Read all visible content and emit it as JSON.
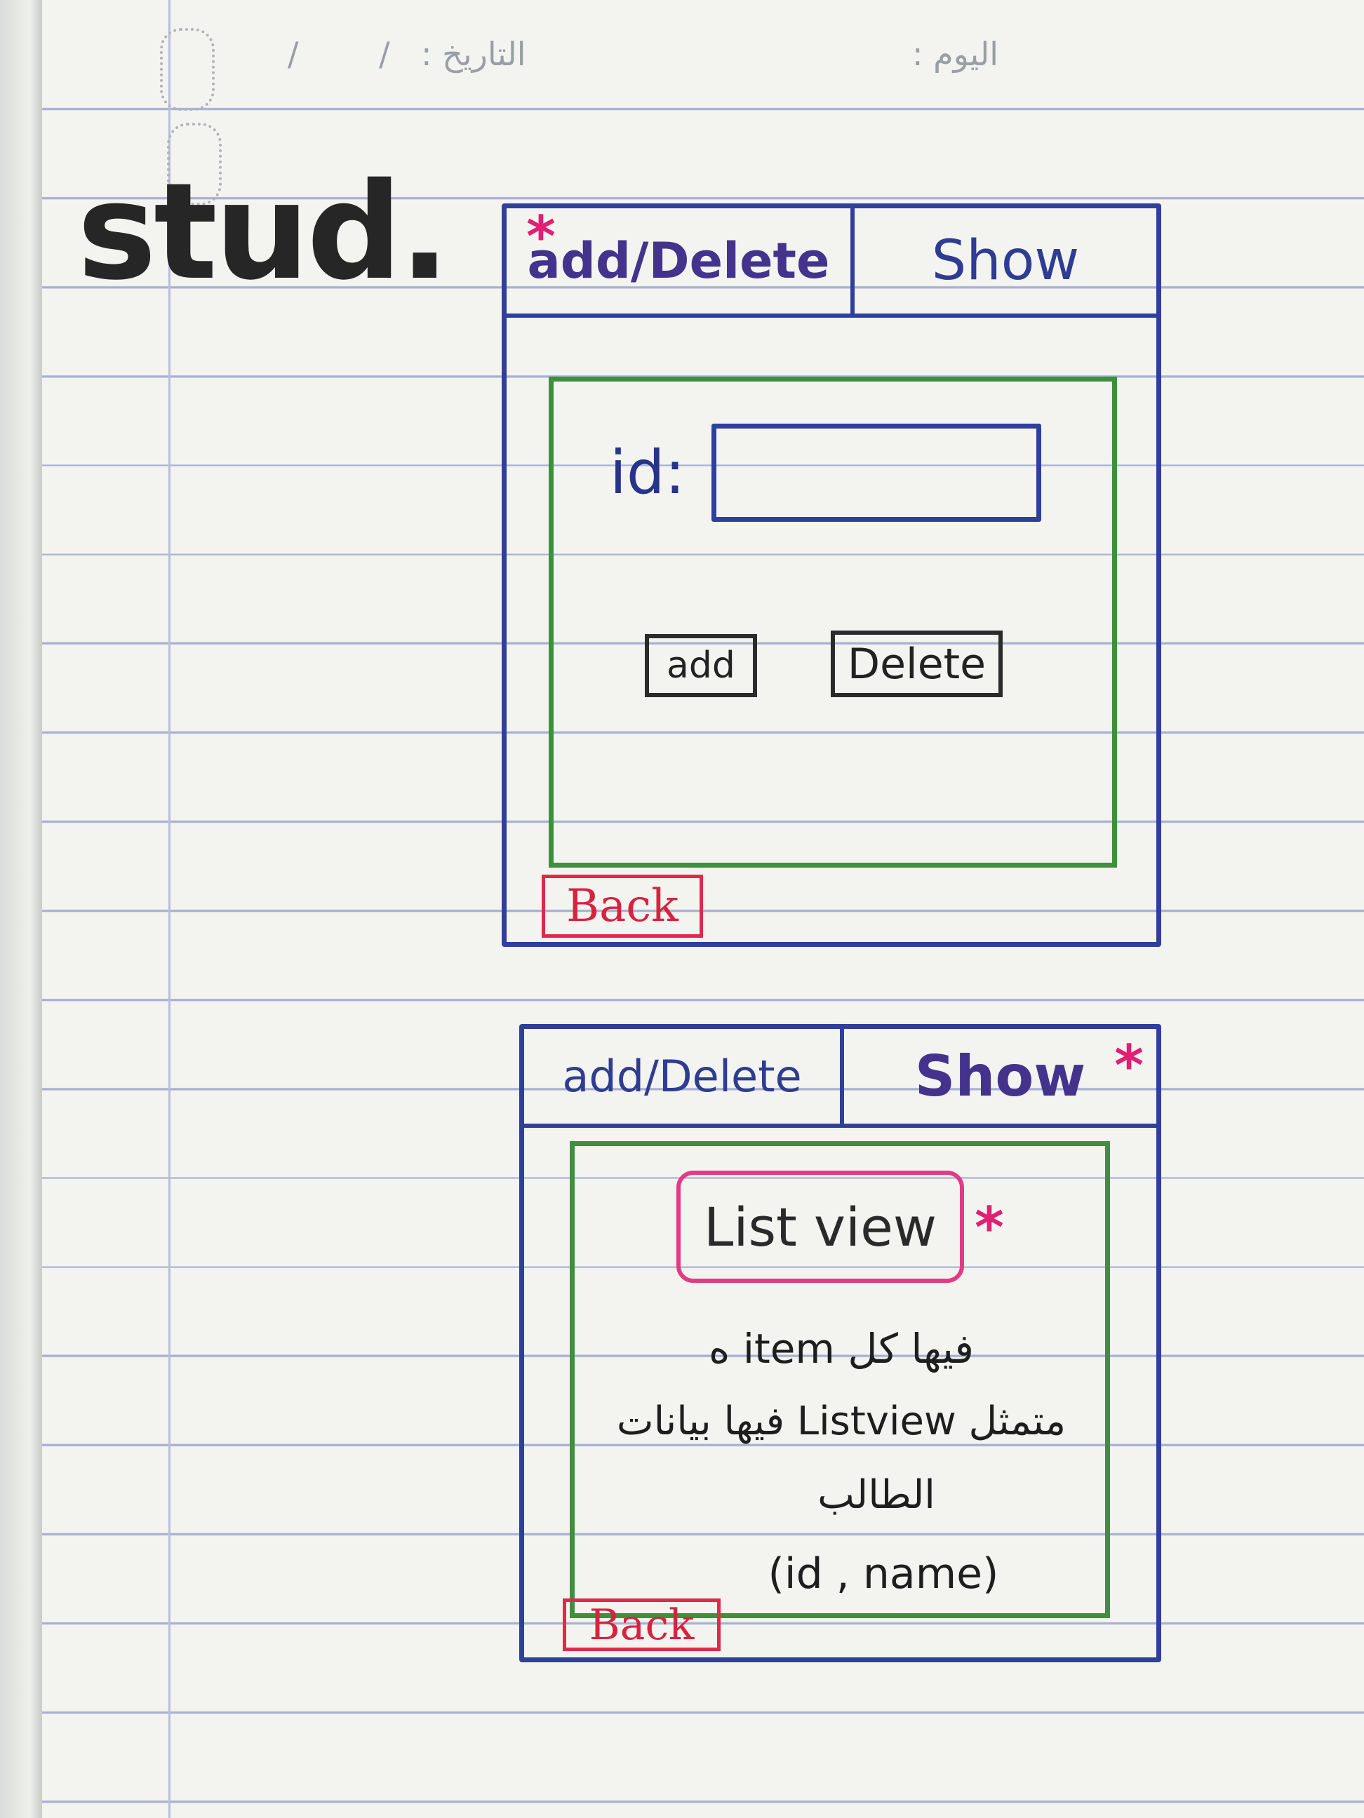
{
  "page_header": {
    "day_label": "اليوم :",
    "date_label": "التاريخ :",
    "date_slashes": "/ /"
  },
  "title": "stud.",
  "screen_add_delete": {
    "tabs": {
      "add_delete": "add/Delete",
      "show": "Show"
    },
    "active_tab": "add/Delete",
    "active_marker": "*",
    "id_label": "id:",
    "id_value": "",
    "add_button": "add",
    "delete_button": "Delete",
    "back_button": "Back"
  },
  "screen_show": {
    "tabs": {
      "add_delete": "add/Delete",
      "show": "Show"
    },
    "active_tab": "Show",
    "active_marker": "*",
    "list_view_label": "List view",
    "list_view_marker": "*",
    "note_line1": "فيها كل item ه",
    "note_line2": "متمثل Listview فيها بيانات",
    "note_line3": "الطالب",
    "note_line4": "(id , name)",
    "back_button": "Back"
  },
  "colors": {
    "frame_blue": "#2f3f9c",
    "panel_green": "#3f8f3f",
    "back_red": "#e0294a",
    "marker_pink": "#e01f75"
  }
}
